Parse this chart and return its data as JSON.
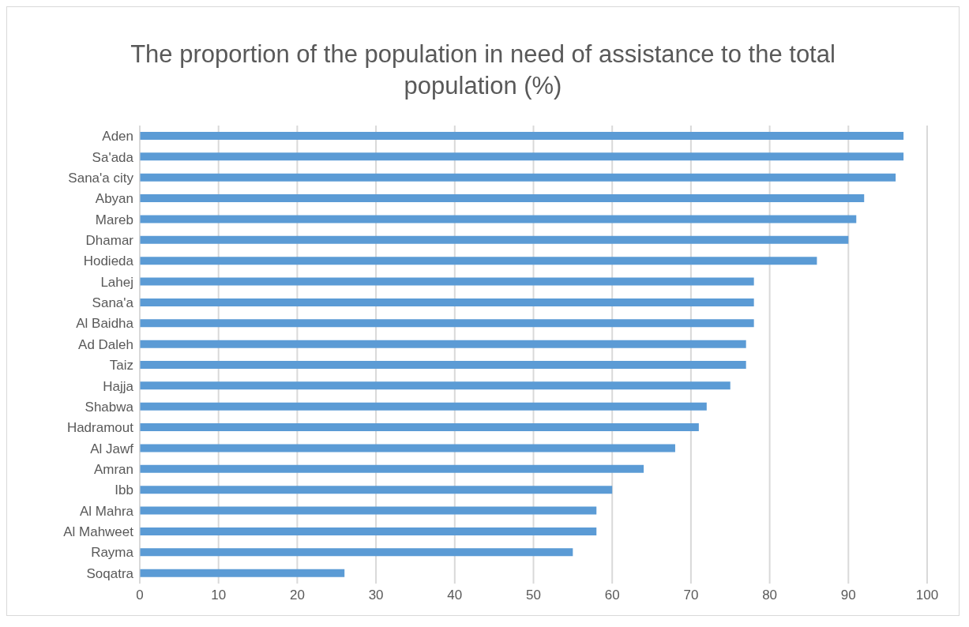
{
  "chart_data": {
    "type": "bar",
    "orientation": "horizontal",
    "title": "The proportion of the population in need of assistance to the total population (%)",
    "categories": [
      "Aden",
      "Sa'ada",
      "Sana'a city",
      "Abyan",
      "Mareb",
      "Dhamar",
      "Hodieda",
      "Lahej",
      "Sana'a",
      "Al Baidha",
      "Ad Daleh",
      "Taiz",
      "Hajja",
      "Shabwa",
      "Hadramout",
      "Al Jawf",
      "Amran",
      "Ibb",
      "Al Mahra",
      "Al Mahweet",
      "Rayma",
      "Soqatra"
    ],
    "values": [
      97,
      97,
      96,
      92,
      91,
      90,
      86,
      78,
      78,
      78,
      77,
      77,
      75,
      72,
      71,
      68,
      64,
      60,
      58,
      58,
      55,
      26
    ],
    "color": "#5b9bd5",
    "xlim": [
      0,
      100
    ],
    "xticks": [
      0,
      10,
      20,
      30,
      40,
      50,
      60,
      70,
      80,
      90,
      100
    ],
    "grid": "x"
  }
}
